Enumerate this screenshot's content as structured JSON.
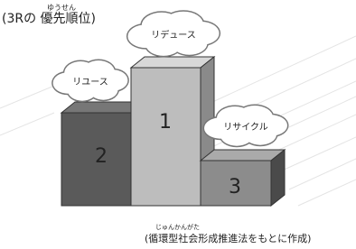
{
  "title": {
    "ruby": "ゆうせん",
    "text": "(3Rの 優先順位)"
  },
  "podium": [
    {
      "rank": "1",
      "label": "リデュース"
    },
    {
      "rank": "2",
      "label": "リユース"
    },
    {
      "rank": "3",
      "label": "リサイクル"
    }
  ],
  "source": {
    "ruby": "じゅんかんがた",
    "text": "(循環型社会形成推進法をもとに作成)"
  }
}
